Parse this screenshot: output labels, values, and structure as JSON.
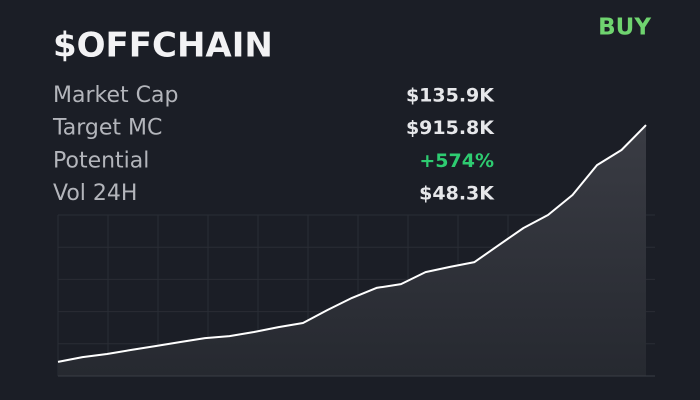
{
  "header": {
    "title": "$OFFCHAIN",
    "action": "BUY"
  },
  "stats": [
    {
      "label": "Market Cap",
      "value": "$135.9K",
      "color": "#e6e7ea"
    },
    {
      "label": "Target MC",
      "value": "$915.8K",
      "color": "#e6e7ea"
    },
    {
      "label": "Potential",
      "value": "+574%",
      "color": "#2ecc71"
    },
    {
      "label": "Vol 24H",
      "value": "$48.3K",
      "color": "#e6e7ea"
    }
  ],
  "sparkline": {
    "type": "line",
    "color": "#ffffff",
    "ylim": [
      0,
      100
    ],
    "values": [
      5.5,
      7.4,
      8.6,
      10.2,
      11.7,
      13.3,
      14.8,
      15.6,
      17.2,
      19.1,
      20.7,
      25.8,
      30.5,
      34.4,
      35.9,
      40.6,
      42.6,
      44.5,
      51.2,
      57.8,
      62.9,
      70.7,
      82.4,
      88.3,
      98
    ]
  }
}
